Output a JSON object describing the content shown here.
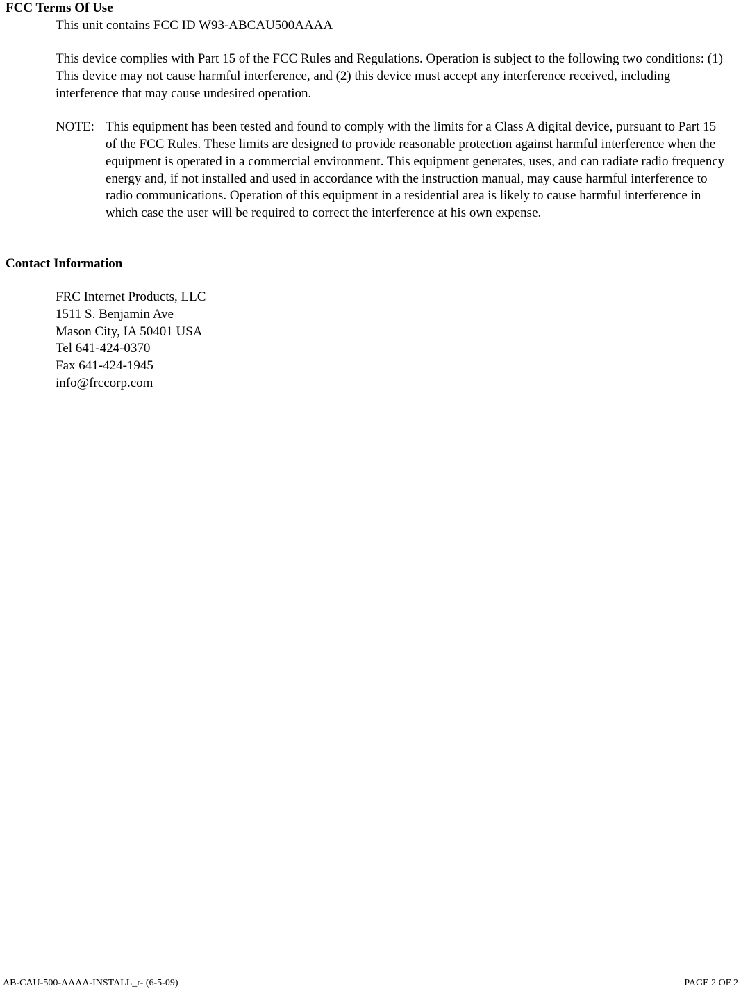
{
  "fcc": {
    "heading": "FCC Terms Of Use",
    "fcc_id_line": "This unit contains FCC ID W93-ABCAU500AAAA",
    "compliance_para": "This device complies with Part 15 of the FCC Rules and Regulations. Operation is subject to the following two conditions: (1) This device may not cause harmful interference, and (2) this device must accept any interference received, including interference that may cause undesired operation.",
    "note_label": "NOTE:",
    "note_text": "This equipment has been tested and found to comply with the limits for a Class A digital device, pursuant to Part 15 of the FCC Rules. These limits are designed to provide reasonable protection against harmful interference when the equipment is operated in a commercial environment. This equipment  generates, uses, and can radiate radio frequency energy and, if not installed and used in accordance with the instruction manual, may cause harmful interference to radio communications. Operation of this equipment in a residential area is likely to cause harmful interference in which case the user will be required to correct the interference at his own expense."
  },
  "contact": {
    "heading": "Contact Information",
    "lines": {
      "company": "FRC Internet Products, LLC",
      "street": "1511 S. Benjamin Ave",
      "city": "Mason City, IA  50401  USA",
      "tel": "Tel 641-424-0370",
      "fax": "Fax 641-424-1945",
      "email": "info@frccorp.com"
    }
  },
  "footer": {
    "left": "AB-CAU-500-AAAA-INSTALL_r- (6-5-09)",
    "right": "PAGE 2 OF 2"
  }
}
